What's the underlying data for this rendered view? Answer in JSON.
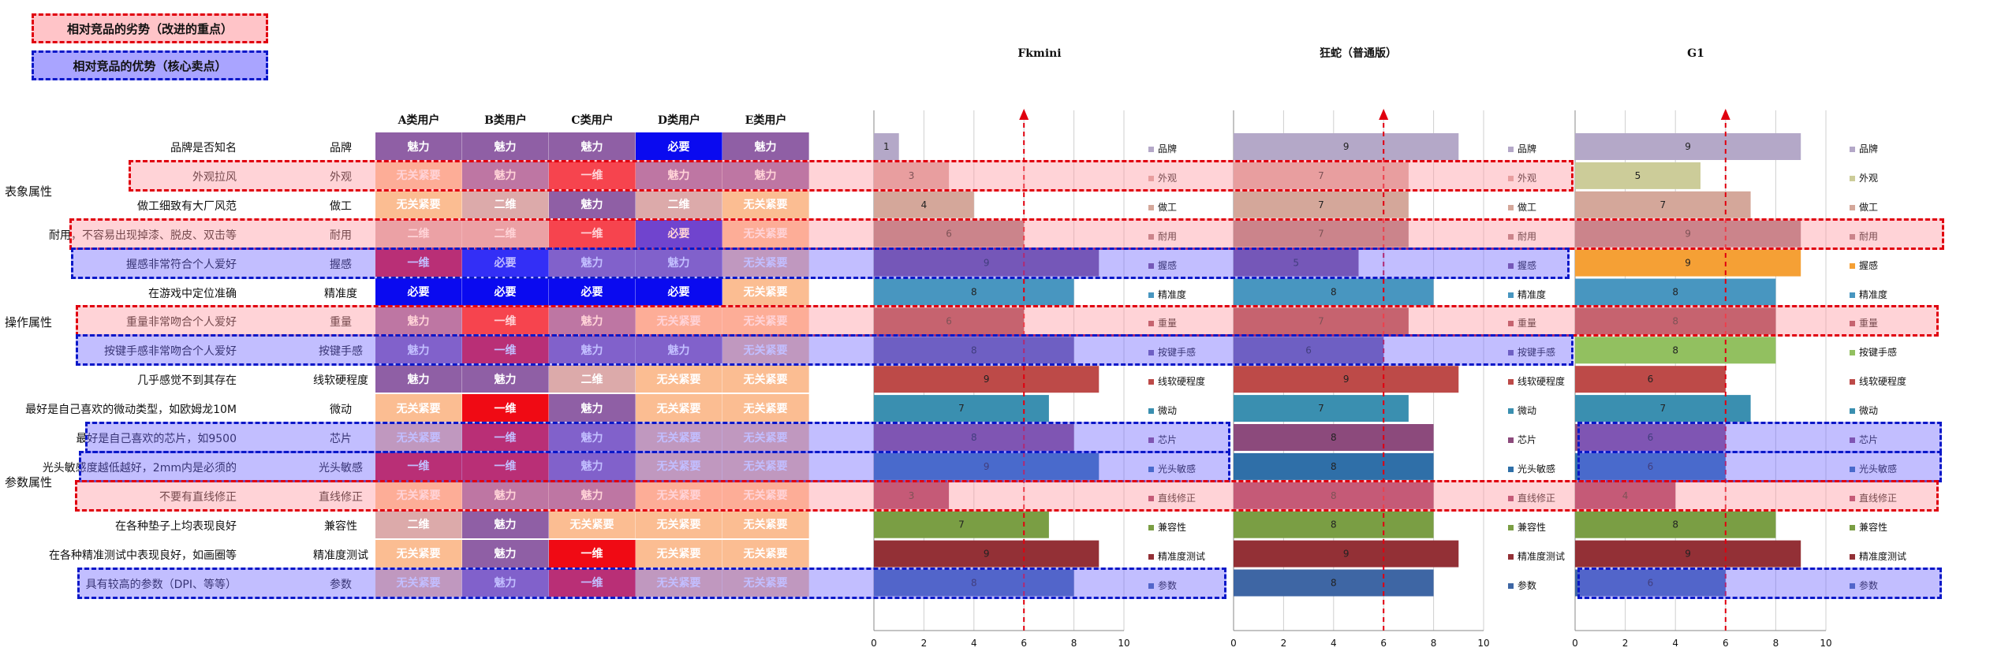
{
  "legend": {
    "weakness": "相对竞品的劣势（改进的重点）",
    "strength": "相对竞品的优势（核心卖点）"
  },
  "user_headers": [
    "A类用户",
    "B类用户",
    "C类用户",
    "D类用户",
    "E类用户"
  ],
  "categories": [
    {
      "name": "表象属性",
      "row": 1.5
    },
    {
      "name": "操作属性",
      "row": 6
    },
    {
      "name": "参数属性",
      "row": 11.5
    }
  ],
  "level_colors": {
    "魅力": "#8f5fa5",
    "必要": "#0a0af0",
    "一维": "#f00a14",
    "二维": "#dcaaaa",
    "无关紧要": "#fbbd92"
  },
  "rows": [
    {
      "desc": "品牌是否知名",
      "attr": "品牌",
      "levels": [
        "魅力",
        "魅力",
        "魅力",
        "必要",
        "魅力"
      ]
    },
    {
      "desc": "外观拉风",
      "attr": "外观",
      "levels": [
        "无关紧要",
        "魅力",
        "一维",
        "魅力",
        "魅力"
      ]
    },
    {
      "desc": "做工细致有大厂风范",
      "attr": "做工",
      "levels": [
        "无关紧要",
        "二维",
        "魅力",
        "二维",
        "无关紧要"
      ]
    },
    {
      "desc": "耐用，不容易出现掉漆、脱皮、双击等",
      "attr": "耐用",
      "levels": [
        "二维",
        "二维",
        "一维",
        "必要",
        "无关紧要"
      ]
    },
    {
      "desc": "握感非常符合个人爱好",
      "attr": "握感",
      "levels": [
        "一维",
        "必要",
        "魅力",
        "魅力",
        "无关紧要"
      ]
    },
    {
      "desc": "在游戏中定位准确",
      "attr": "精准度",
      "levels": [
        "必要",
        "必要",
        "必要",
        "必要",
        "无关紧要"
      ]
    },
    {
      "desc": "重量非常吻合个人爱好",
      "attr": "重量",
      "levels": [
        "魅力",
        "一维",
        "魅力",
        "无关紧要",
        "无关紧要"
      ]
    },
    {
      "desc": "按键手感非常吻合个人爱好",
      "attr": "按键手感",
      "levels": [
        "魅力",
        "一维",
        "魅力",
        "魅力",
        "无关紧要"
      ]
    },
    {
      "desc": "几乎感觉不到其存在",
      "attr": "线软硬程度",
      "levels": [
        "魅力",
        "魅力",
        "二维",
        "无关紧要",
        "无关紧要"
      ]
    },
    {
      "desc": "最好是自己喜欢的微动类型，如欧姆龙10M",
      "attr": "微动",
      "levels": [
        "无关紧要",
        "一维",
        "魅力",
        "无关紧要",
        "无关紧要"
      ]
    },
    {
      "desc": "最好是自己喜欢的芯片，如9500",
      "attr": "芯片",
      "levels": [
        "无关紧要",
        "一维",
        "魅力",
        "无关紧要",
        "无关紧要"
      ]
    },
    {
      "desc": "光头敏感度越低越好，2mm内是必须的",
      "attr": "光头敏感",
      "levels": [
        "一维",
        "一维",
        "魅力",
        "无关紧要",
        "无关紧要"
      ]
    },
    {
      "desc": "不要有直线修正",
      "attr": "直线修正",
      "levels": [
        "无关紧要",
        "魅力",
        "魅力",
        "无关紧要",
        "无关紧要"
      ]
    },
    {
      "desc": "在各种垫子上均表现良好",
      "attr": "兼容性",
      "levels": [
        "二维",
        "魅力",
        "无关紧要",
        "无关紧要",
        "无关紧要"
      ]
    },
    {
      "desc": "在各种精准测试中表现良好，如画圈等",
      "attr": "精准度测试",
      "levels": [
        "无关紧要",
        "魅力",
        "一维",
        "无关紧要",
        "无关紧要"
      ]
    },
    {
      "desc": "具有较高的参数（DPI、等等）",
      "attr": "参数",
      "levels": [
        "无关紧要",
        "魅力",
        "一维",
        "无关紧要",
        "无关紧要"
      ]
    }
  ],
  "highlights": [
    {
      "row": 1,
      "type": "weakness",
      "range": "left"
    },
    {
      "row": 3,
      "type": "weakness",
      "range": "full"
    },
    {
      "row": 4,
      "type": "strength",
      "range": "left"
    },
    {
      "row": 6,
      "type": "weakness",
      "range": "full"
    },
    {
      "row": 7,
      "type": "strength",
      "range": "left"
    },
    {
      "row": 10,
      "type": "strength",
      "range": "left"
    },
    {
      "row": 10,
      "type": "strength",
      "range": "g1"
    },
    {
      "row": 11,
      "type": "strength",
      "range": "left"
    },
    {
      "row": 11,
      "type": "strength",
      "range": "g1"
    },
    {
      "row": 12,
      "type": "weakness",
      "range": "full"
    },
    {
      "row": 15,
      "type": "strength",
      "range": "left"
    },
    {
      "row": 15,
      "type": "strength",
      "range": "g1"
    }
  ],
  "chart_data": [
    {
      "type": "bar",
      "orientation": "horizontal",
      "title": "Fkmini",
      "categories": [
        "品牌",
        "外观",
        "做工",
        "耐用",
        "握感",
        "精准度",
        "重量",
        "按键手感",
        "线软硬程度",
        "微动",
        "芯片",
        "光头敏感",
        "直线修正",
        "兼容性",
        "精准度测试",
        "参数"
      ],
      "values": [
        1,
        3,
        4,
        6,
        9,
        8,
        6,
        8,
        9,
        7,
        8,
        9,
        3,
        7,
        9,
        8
      ],
      "xlim": [
        0,
        10
      ],
      "xticks": [
        0,
        2,
        4,
        6,
        8,
        10
      ],
      "reference_line": 6,
      "grid": true,
      "legend_position": "right"
    },
    {
      "type": "bar",
      "orientation": "horizontal",
      "title": "狂蛇（普通版）",
      "categories": [
        "品牌",
        "外观",
        "做工",
        "耐用",
        "握感",
        "精准度",
        "重量",
        "按键手感",
        "线软硬程度",
        "微动",
        "芯片",
        "光头敏感",
        "直线修正",
        "兼容性",
        "精准度测试",
        "参数"
      ],
      "values": [
        9,
        7,
        7,
        7,
        5,
        8,
        7,
        6,
        9,
        7,
        8,
        8,
        8,
        8,
        9,
        8
      ],
      "xlim": [
        0,
        10
      ],
      "xticks": [
        0,
        2,
        4,
        6,
        8,
        10
      ],
      "reference_line": 6,
      "grid": true,
      "legend_position": "right"
    },
    {
      "type": "bar",
      "orientation": "horizontal",
      "title": "G1",
      "categories": [
        "品牌",
        "外观",
        "做工",
        "耐用",
        "握感",
        "精准度",
        "重量",
        "按键手感",
        "线软硬程度",
        "微动",
        "芯片",
        "光头敏感",
        "直线修正",
        "兼容性",
        "精准度测试",
        "参数"
      ],
      "values": [
        9,
        5,
        7,
        9,
        9,
        8,
        8,
        8,
        6,
        7,
        6,
        6,
        4,
        8,
        9,
        6
      ],
      "xlim": [
        0,
        10
      ],
      "xticks": [
        0,
        2,
        4,
        6,
        8,
        10
      ],
      "reference_line": 6,
      "grid": true,
      "legend_position": "right"
    }
  ],
  "bar_colors": [
    "#b4a8c8",
    "#d7a49f",
    "#d4a79a",
    "#a6787c",
    "#7a4e86",
    "#4896c0",
    "#9e3f4c",
    "#6e5c98",
    "#bd4a48",
    "#3a8fb0",
    "#8c4a7c",
    "#2f6fa8",
    "#9c2f5a",
    "#7a9e44",
    "#933036",
    "#3e66a4"
  ],
  "g1_bar_colors": [
    "#b4a8c8",
    "#cccc99",
    "#d4a79a",
    "#a6787c",
    "#f5a035",
    "#4896c0",
    "#9e3f4c",
    "#92c060",
    "#bd4a48",
    "#3a8fb0",
    "#8c4a7c",
    "#2f6fa8",
    "#9c2f5a",
    "#7a9e44",
    "#933036",
    "#3e66a4"
  ]
}
